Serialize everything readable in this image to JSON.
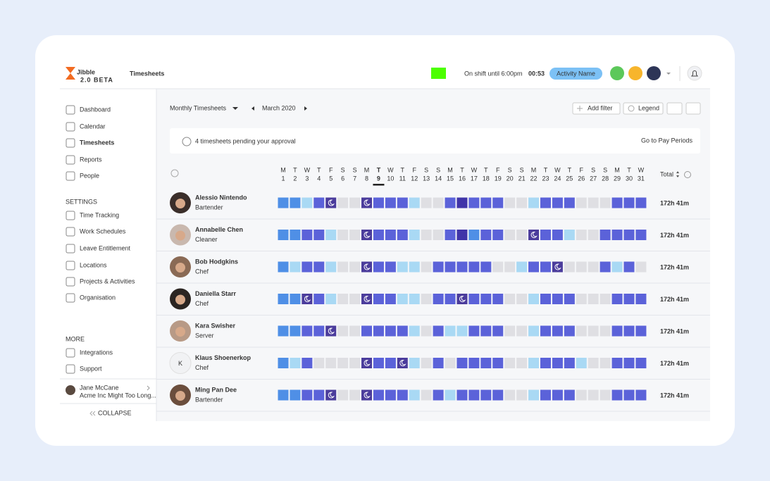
{
  "header": {
    "logo": "Jibble",
    "logo_badge": "2.0 BETA",
    "title": "Timesheets",
    "shift_text": "On shift until 6:00pm",
    "timer": "00:53",
    "activity": "Activity Name"
  },
  "sidebar": {
    "nav": [
      "Dashboard",
      "Calendar",
      "Timesheets",
      "Reports",
      "People"
    ],
    "settings_heading": "SETTINGS",
    "settings": [
      "Time Tracking",
      "Work Schedules",
      "Leave Entitlement",
      "Locations",
      "Projects & Activities",
      "Organisation"
    ],
    "more_heading": "MORE",
    "more": [
      "Integrations",
      "Support"
    ],
    "user": {
      "name": "Jane McCane",
      "org": "Acme Inc Might Too Long..."
    },
    "collapse": "COLLAPSE"
  },
  "toolbar": {
    "view": "Monthly Timesheets",
    "month": "March 2020",
    "add_filter": "Add filter",
    "legend": "Legend"
  },
  "banner": {
    "message": "4 timesheets pending your approval",
    "link": "Go to Pay Periods"
  },
  "calendar": {
    "weekdays": [
      "M",
      "T",
      "W",
      "T",
      "F",
      "S",
      "S",
      "M",
      "T",
      "W",
      "T",
      "F",
      "S",
      "S",
      "M",
      "T",
      "W",
      "T",
      "F",
      "S",
      "S",
      "M",
      "T",
      "W",
      "T",
      "F",
      "S",
      "S",
      "M",
      "T",
      "W"
    ],
    "days": [
      1,
      2,
      3,
      4,
      5,
      6,
      7,
      8,
      9,
      10,
      11,
      12,
      13,
      14,
      15,
      16,
      17,
      18,
      19,
      20,
      21,
      22,
      23,
      24,
      25,
      26,
      27,
      28,
      29,
      30,
      31
    ]
  },
  "table": {
    "total_header": "Total",
    "rows": [
      {
        "name": "Alessio Nintendo",
        "role": "Bartender",
        "total": "172h 41m"
      },
      {
        "name": "Annabelle Chen",
        "role": "Cleaner",
        "total": "172h 41m"
      },
      {
        "name": "Bob Hodgkins",
        "role": "Chef",
        "total": "172h 41m"
      },
      {
        "name": "Daniella Starr",
        "role": "Chef",
        "total": "172h 41m"
      },
      {
        "name": "Kara Swisher",
        "role": "Server",
        "total": "172h 41m"
      },
      {
        "name": "Klaus Shoenerkop",
        "role": "Chef",
        "total": "172h 41m",
        "avatar_initial": "K"
      },
      {
        "name": "Ming Pan Dee",
        "role": "Bartender",
        "total": "172h 41m"
      }
    ]
  }
}
